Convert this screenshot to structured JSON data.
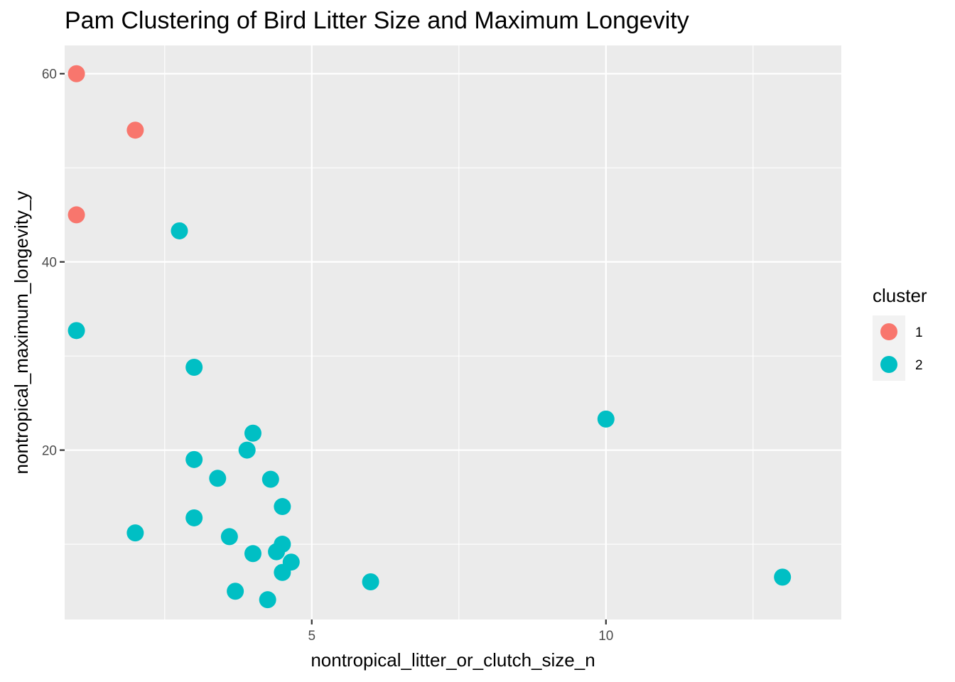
{
  "chart_data": {
    "type": "scatter",
    "title": "Pam Clustering of Bird Litter Size and Maximum Longevity",
    "xlabel": "nontropical_litter_or_clutch_size_n",
    "ylabel": "nontropical_maximum_longevity_y",
    "xlim": [
      0.8,
      14.0
    ],
    "ylim": [
      2.0,
      63.0
    ],
    "x_ticks": [
      5,
      10
    ],
    "y_ticks": [
      20,
      40,
      60
    ],
    "x_minor_ticks": [
      2.5,
      7.5,
      12.5
    ],
    "y_minor_ticks": [
      10,
      30,
      50
    ],
    "grid": true,
    "legend": {
      "title": "cluster",
      "position": "right"
    },
    "series": [
      {
        "name": "1",
        "color": "#F8766D",
        "points": [
          {
            "x": 1.0,
            "y": 60.0
          },
          {
            "x": 2.0,
            "y": 54.0
          },
          {
            "x": 1.0,
            "y": 45.0
          }
        ]
      },
      {
        "name": "2",
        "color": "#00BFC4",
        "points": [
          {
            "x": 2.75,
            "y": 43.3
          },
          {
            "x": 1.0,
            "y": 32.7
          },
          {
            "x": 3.0,
            "y": 28.8
          },
          {
            "x": 10.0,
            "y": 23.3
          },
          {
            "x": 4.0,
            "y": 21.8
          },
          {
            "x": 3.9,
            "y": 20.0
          },
          {
            "x": 3.0,
            "y": 19.0
          },
          {
            "x": 3.4,
            "y": 17.0
          },
          {
            "x": 4.3,
            "y": 16.9
          },
          {
            "x": 4.5,
            "y": 14.0
          },
          {
            "x": 3.0,
            "y": 12.8
          },
          {
            "x": 2.0,
            "y": 11.2
          },
          {
            "x": 3.6,
            "y": 10.8
          },
          {
            "x": 4.5,
            "y": 10.0
          },
          {
            "x": 4.4,
            "y": 9.2
          },
          {
            "x": 4.0,
            "y": 9.0
          },
          {
            "x": 4.65,
            "y": 8.1
          },
          {
            "x": 4.5,
            "y": 7.0
          },
          {
            "x": 6.0,
            "y": 6.0
          },
          {
            "x": 13.0,
            "y": 6.5
          },
          {
            "x": 3.7,
            "y": 5.0
          },
          {
            "x": 4.25,
            "y": 4.1
          }
        ]
      }
    ]
  }
}
